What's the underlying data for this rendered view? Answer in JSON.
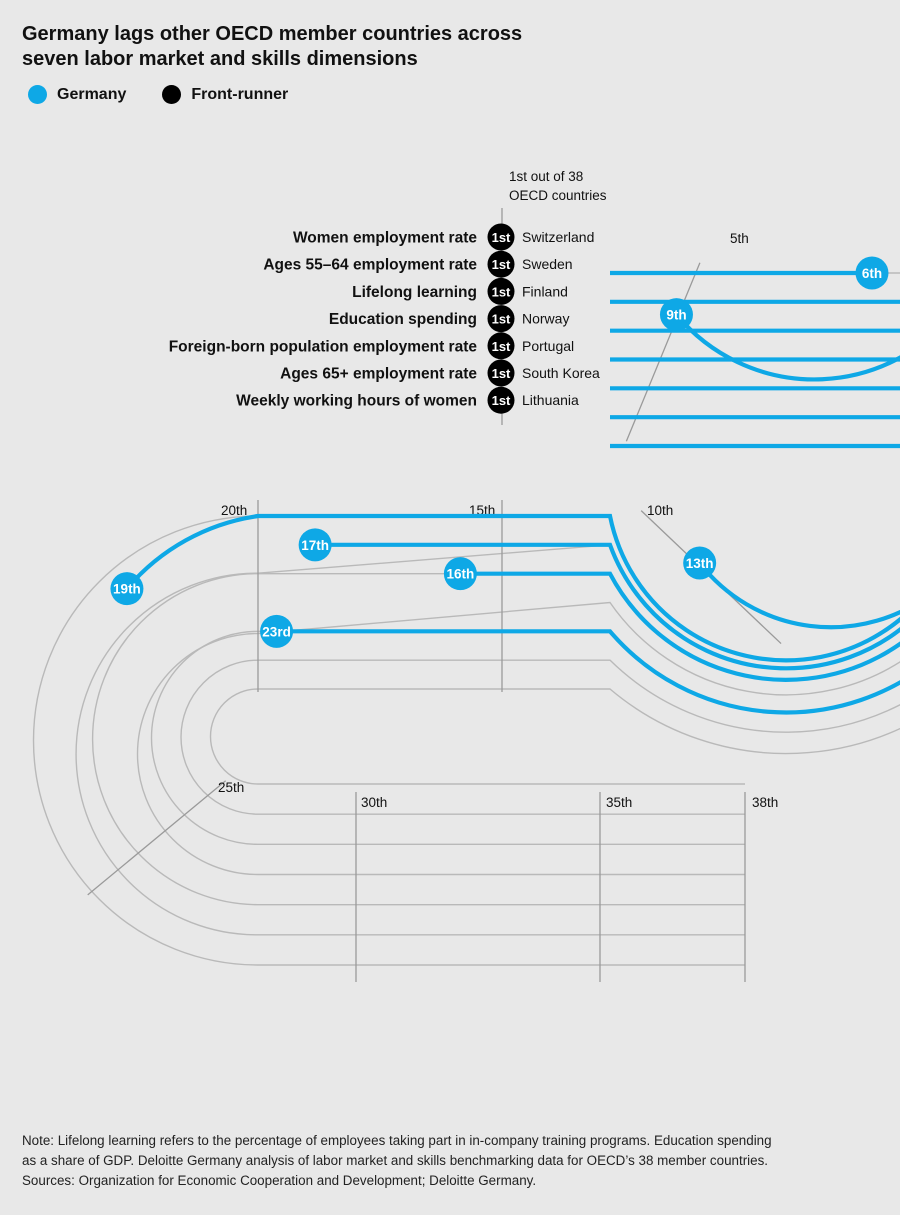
{
  "title": "Germany lags other OECD member countries across seven labor market and skills dimensions",
  "legend": {
    "germany": "Germany",
    "front_runner": "Front-runner",
    "colors": {
      "germany": "#0ea8e6",
      "front_runner": "#000000"
    }
  },
  "chart_data": {
    "type": "track",
    "total_countries": 38,
    "start_annotation": [
      "1st out of 38",
      "OECD countries"
    ],
    "milestone_labels": [
      "5th",
      "10th",
      "15th",
      "20th",
      "25th",
      "30th",
      "35th",
      "38th"
    ],
    "series": [
      {
        "name": "Women employment rate",
        "front_runner": "Switzerland",
        "front_runner_rank": "1st",
        "germany_rank": 6,
        "germany_label": "6th"
      },
      {
        "name": "Ages 55–64 employment rate",
        "front_runner": "Sweden",
        "front_runner_rank": "1st",
        "germany_rank": 9,
        "germany_label": "9th"
      },
      {
        "name": "Lifelong learning",
        "front_runner": "Finland",
        "front_runner_rank": "1st",
        "germany_rank": 23,
        "germany_label": "23rd"
      },
      {
        "name": "Education spending",
        "front_runner": "Norway",
        "front_runner_rank": "1st",
        "germany_rank": 13,
        "germany_label": "13th"
      },
      {
        "name": "Foreign-born population employment rate",
        "front_runner": "Portugal",
        "front_runner_rank": "1st",
        "germany_rank": 16,
        "germany_label": "16th"
      },
      {
        "name": "Ages 65+ employment rate",
        "front_runner": "South Korea",
        "front_runner_rank": "1st",
        "germany_rank": 17,
        "germany_label": "17th"
      },
      {
        "name": "Weekly working hours of women",
        "front_runner": "Lithuania",
        "front_runner_rank": "1st",
        "germany_rank": 19,
        "germany_label": "19th"
      }
    ]
  },
  "note": [
    "Note: Lifelong learning refers to the percentage of employees taking part in in-company training programs. Education spending",
    "as a share of GDP. Deloitte Germany analysis of labor market and skills benchmarking data for OECD’s 38 member countries.",
    "Sources: Organization for Economic Cooperation and Development; Deloitte Germany."
  ]
}
